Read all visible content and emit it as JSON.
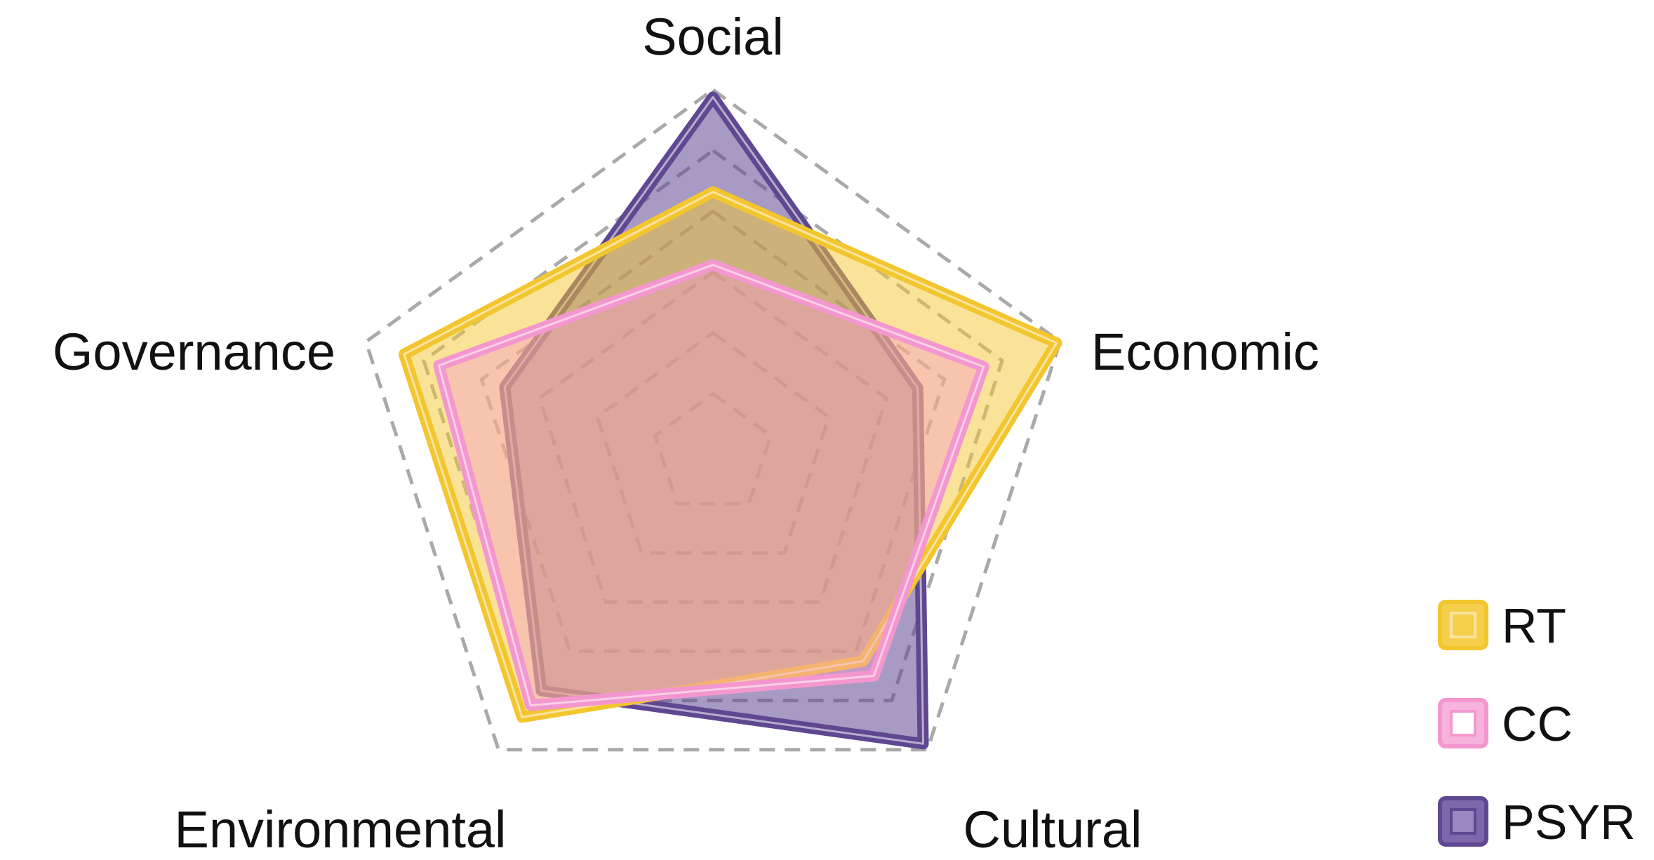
{
  "chart_data": {
    "type": "radar",
    "axes": [
      "Social",
      "Economic",
      "Cultural",
      "Environmental",
      "Governance"
    ],
    "rmax": 1.0,
    "grid": {
      "levels": 6,
      "style": "dashed"
    },
    "legend_position": "bottom-right",
    "series": [
      {
        "name": "PSYR",
        "values": [
          0.98,
          0.59,
          0.98,
          0.8,
          0.6
        ],
        "color": "#5f4791",
        "fill": "rgba(95,71,145,0.55)"
      },
      {
        "name": "RT",
        "values": [
          0.72,
          0.99,
          0.7,
          0.89,
          0.89
        ],
        "color": "#f3c62f",
        "fill": "rgba(244,200,50,0.50)"
      },
      {
        "name": "CC",
        "values": [
          0.52,
          0.78,
          0.75,
          0.85,
          0.79
        ],
        "color": "#f497cf",
        "fill": "rgba(244,151,207,0.40)"
      }
    ],
    "legend": [
      "RT",
      "CC",
      "PSYR"
    ]
  }
}
